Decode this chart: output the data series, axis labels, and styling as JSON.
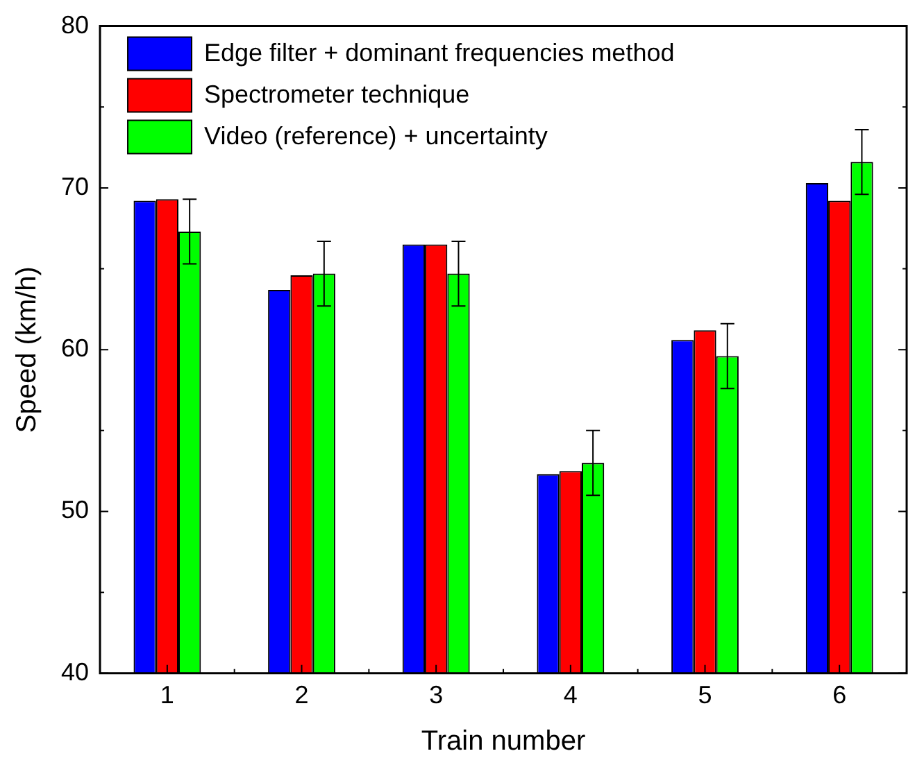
{
  "chart_data": {
    "type": "bar",
    "xlabel": "Train number",
    "ylabel": "Speed (km/h)",
    "categories": [
      "1",
      "2",
      "3",
      "4",
      "5",
      "6"
    ],
    "series": [
      {
        "name": "Edge filter + dominant frequencies method",
        "color": "#0000ff",
        "values": [
          69.2,
          63.7,
          66.5,
          52.3,
          60.6,
          70.3
        ]
      },
      {
        "name": "Spectrometer technique",
        "color": "#ff0000",
        "values": [
          69.3,
          64.6,
          66.5,
          52.5,
          61.2,
          69.2
        ]
      },
      {
        "name": "Video (reference) + uncertainty",
        "color": "#00ff00",
        "values": [
          67.3,
          64.7,
          64.7,
          53.0,
          59.6,
          71.6
        ],
        "errors": [
          2,
          2,
          2,
          2,
          2,
          2
        ]
      }
    ],
    "ylim": [
      40,
      80
    ],
    "yticks": [
      40,
      50,
      60,
      70,
      80
    ],
    "grid": false,
    "legend": "top left"
  }
}
